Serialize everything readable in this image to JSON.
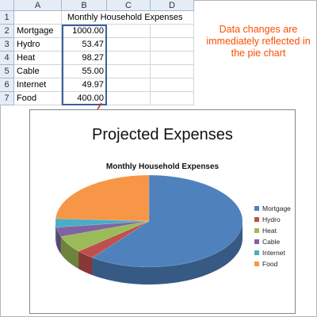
{
  "spreadsheet": {
    "columns": [
      "A",
      "B",
      "C",
      "D"
    ],
    "rows": [
      "1",
      "2",
      "3",
      "4",
      "5",
      "6",
      "7"
    ],
    "header_title": "Monthly Household Expenses",
    "items": [
      {
        "label": "Mortgage",
        "value": "1000.00"
      },
      {
        "label": "Hydro",
        "value": "53.47"
      },
      {
        "label": "Heat",
        "value": "98.27"
      },
      {
        "label": "Cable",
        "value": "55.00"
      },
      {
        "label": "Internet",
        "value": "49.97"
      },
      {
        "label": "Food",
        "value": "400.00"
      }
    ]
  },
  "note": "Data changes are immediately reflected in the pie chart",
  "chart": {
    "panel_title": "Projected Expenses",
    "title": "Monthly Household Expenses"
  },
  "chart_data": {
    "type": "pie",
    "title": "Monthly Household Expenses",
    "categories": [
      "Mortgage",
      "Hydro",
      "Heat",
      "Cable",
      "Internet",
      "Food"
    ],
    "values": [
      1000.0,
      53.47,
      98.27,
      55.0,
      49.97,
      400.0
    ],
    "colors": [
      "#4f81bd",
      "#c0504d",
      "#9bbb59",
      "#8064a2",
      "#4bacc6",
      "#f79646"
    ],
    "legend": "right",
    "style": "3d"
  }
}
